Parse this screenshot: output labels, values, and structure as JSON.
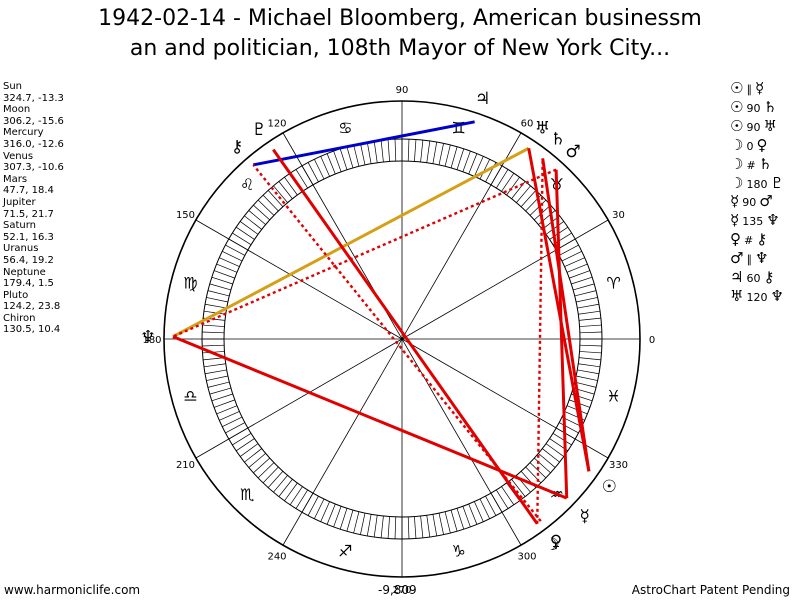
{
  "header": {
    "title_line1": "1942-02-14 - Michael Bloomberg, American businessm",
    "title_line2": "an and politician, 108th Mayor of New York City..."
  },
  "positions": [
    {
      "name": "Sun",
      "coords": "324.7, -13.3"
    },
    {
      "name": "Moon",
      "coords": "306.2, -15.6"
    },
    {
      "name": "Mercury",
      "coords": "316.0, -12.6"
    },
    {
      "name": "Venus",
      "coords": "307.3, -10.6"
    },
    {
      "name": "Mars",
      "coords": "47.7, 18.4"
    },
    {
      "name": "Jupiter",
      "coords": "71.5, 21.7"
    },
    {
      "name": "Saturn",
      "coords": "52.1, 16.3"
    },
    {
      "name": "Uranus",
      "coords": "56.4, 19.2"
    },
    {
      "name": "Neptune",
      "coords": "179.4, 1.5"
    },
    {
      "name": "Pluto",
      "coords": "124.2, 23.8"
    },
    {
      "name": "Chiron",
      "coords": "130.5, 10.4"
    }
  ],
  "aspects": [
    {
      "p1": "☉",
      "op": "∥",
      "p2": "☿"
    },
    {
      "p1": "☉",
      "op": "90",
      "p2": "♄"
    },
    {
      "p1": "☉",
      "op": "90",
      "p2": "♅"
    },
    {
      "p1": "☽",
      "op": "0",
      "p2": "♀"
    },
    {
      "p1": "☽",
      "op": "#",
      "p2": "♄"
    },
    {
      "p1": "☽",
      "op": "180",
      "p2": "♇"
    },
    {
      "p1": "☿",
      "op": "90",
      "p2": "♂"
    },
    {
      "p1": "☿",
      "op": "135",
      "p2": "♆"
    },
    {
      "p1": "♀",
      "op": "#",
      "p2": "⚷"
    },
    {
      "p1": "♂",
      "op": "∥",
      "p2": "♆"
    },
    {
      "p1": "♃",
      "op": "60",
      "p2": "⚷"
    },
    {
      "p1": "♅",
      "op": "120",
      "p2": "♆"
    }
  ],
  "wheel": {
    "degree_labels": [
      {
        "label": "0",
        "deg": 0
      },
      {
        "label": "30",
        "deg": 30
      },
      {
        "label": "60",
        "deg": 60
      },
      {
        "label": "90",
        "deg": 90
      },
      {
        "label": "120",
        "deg": 120
      },
      {
        "label": "150",
        "deg": 150
      },
      {
        "label": "180",
        "deg": 180
      },
      {
        "label": "210",
        "deg": 210
      },
      {
        "label": "240",
        "deg": 240
      },
      {
        "label": "270",
        "deg": 270
      },
      {
        "label": "300",
        "deg": 300
      },
      {
        "label": "330",
        "deg": 330
      }
    ],
    "signs": [
      {
        "glyph": "♈",
        "name": "aries"
      },
      {
        "glyph": "♉",
        "name": "taurus"
      },
      {
        "glyph": "♊",
        "name": "gemini"
      },
      {
        "glyph": "♋",
        "name": "cancer"
      },
      {
        "glyph": "♌",
        "name": "leo"
      },
      {
        "glyph": "♍",
        "name": "virgo"
      },
      {
        "glyph": "♎",
        "name": "libra"
      },
      {
        "glyph": "♏",
        "name": "scorpio"
      },
      {
        "glyph": "♐",
        "name": "sagittarius"
      },
      {
        "glyph": "♑",
        "name": "capricorn"
      },
      {
        "glyph": "♒",
        "name": "aquarius"
      },
      {
        "glyph": "♓",
        "name": "pisces"
      }
    ],
    "planets": [
      {
        "glyph": "☉",
        "name": "sun",
        "lon": 324.7
      },
      {
        "glyph": "☽",
        "name": "moon",
        "lon": 306.2
      },
      {
        "glyph": "☿",
        "name": "mercury",
        "lon": 316.0
      },
      {
        "glyph": "♀",
        "name": "venus",
        "lon": 307.3
      },
      {
        "glyph": "♂",
        "name": "mars",
        "lon": 47.7
      },
      {
        "glyph": "♃",
        "name": "jupiter",
        "lon": 71.5
      },
      {
        "glyph": "♄",
        "name": "saturn",
        "lon": 52.1
      },
      {
        "glyph": "♅",
        "name": "uranus",
        "lon": 56.4
      },
      {
        "glyph": "♆",
        "name": "neptune",
        "lon": 179.4
      },
      {
        "glyph": "♇",
        "name": "pluto",
        "lon": 124.2
      },
      {
        "glyph": "⚷",
        "name": "chiron",
        "lon": 130.5
      }
    ],
    "aspect_lines": [
      {
        "from": "jupiter",
        "to": "chiron",
        "color": "#0000cc",
        "style": "solid"
      },
      {
        "from": "uranus",
        "to": "neptune",
        "color": "#d4a017",
        "style": "solid"
      },
      {
        "from": "sun",
        "to": "saturn",
        "color": "#e00000",
        "style": "solid"
      },
      {
        "from": "sun",
        "to": "uranus",
        "color": "#e00000",
        "style": "solid"
      },
      {
        "from": "moon",
        "to": "pluto",
        "color": "#e00000",
        "style": "solid"
      },
      {
        "from": "mercury",
        "to": "mars",
        "color": "#e00000",
        "style": "solid"
      },
      {
        "from": "mercury",
        "to": "neptune",
        "color": "#e00000",
        "style": "solid"
      },
      {
        "from": "moon",
        "to": "saturn",
        "color": "#e00000",
        "style": "dotted"
      },
      {
        "from": "venus",
        "to": "chiron",
        "color": "#e00000",
        "style": "dotted"
      },
      {
        "from": "mars",
        "to": "neptune",
        "color": "#e00000",
        "style": "dotted"
      }
    ]
  },
  "footer": {
    "left": "www.harmoniclife.com",
    "center": "-9,809",
    "right": "AstroChart Patent Pending"
  }
}
